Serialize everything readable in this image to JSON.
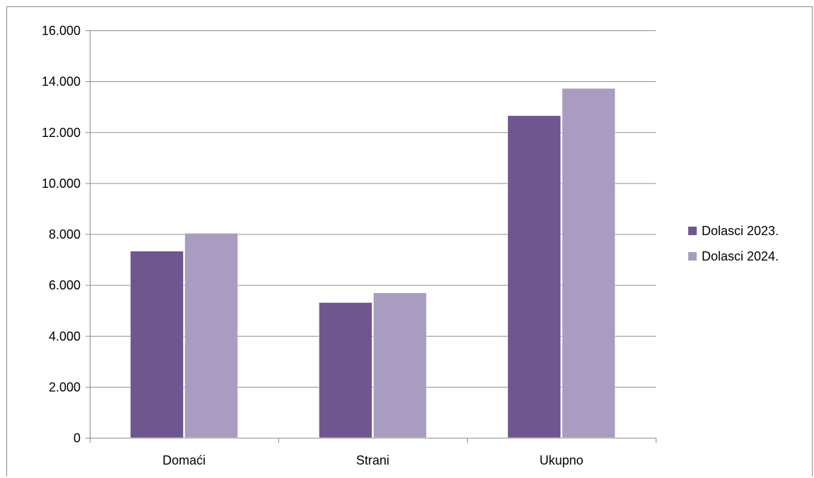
{
  "chart_data": {
    "type": "bar",
    "title": "",
    "xlabel": "",
    "ylabel": "",
    "categories": [
      "Domaći",
      "Strani",
      "Ukupno"
    ],
    "series": [
      {
        "name": "Dolasci 2023.",
        "color": "#70568e",
        "values": [
          7330,
          5310,
          12650
        ]
      },
      {
        "name": "Dolasci 2024.",
        "color": "#a99cc0",
        "values": [
          8030,
          5690,
          13720
        ]
      }
    ],
    "ylim": [
      0,
      16000
    ],
    "yticks": [
      0,
      2000,
      4000,
      6000,
      8000,
      10000,
      12000,
      14000,
      16000
    ],
    "ytick_labels": [
      "0",
      "2.000",
      "4.000",
      "6.000",
      "8.000",
      "10.000",
      "12.000",
      "14.000",
      "16.000"
    ],
    "grid": true,
    "legend_position": "right",
    "colors": {
      "gridline": "#8c8c8c",
      "axis": "#8c8c8c",
      "frame": "#8c8c8c"
    }
  }
}
